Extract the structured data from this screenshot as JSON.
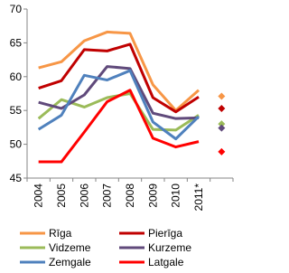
{
  "chart_data": {
    "type": "line",
    "categories": [
      "2004",
      "2005",
      "2006",
      "2007",
      "2008",
      "2009",
      "2010",
      "2011*",
      null
    ],
    "last_point_style": "diamond",
    "ylim": [
      45,
      70
    ],
    "yticks": [
      45,
      50,
      55,
      60,
      65,
      70
    ],
    "grid": false,
    "legend": "bottom",
    "series": [
      {
        "name": "Rīga",
        "color": "#F79646",
        "values": [
          61.3,
          62.2,
          65.3,
          66.6,
          66.4,
          58.8,
          55.0,
          58.0,
          57.1
        ]
      },
      {
        "name": "Pierīga",
        "color": "#C00000",
        "values": [
          58.3,
          59.4,
          64.0,
          63.8,
          64.8,
          56.9,
          54.8,
          57.0,
          55.3
        ]
      },
      {
        "name": "Vidzeme",
        "color": "#9BBB59",
        "values": [
          53.8,
          56.6,
          55.5,
          56.9,
          57.5,
          52.2,
          52.1,
          54.3,
          53.0
        ]
      },
      {
        "name": "Kurzeme",
        "color": "#604A7B",
        "values": [
          56.2,
          55.3,
          57.3,
          61.5,
          61.2,
          54.6,
          53.8,
          53.9,
          52.4
        ]
      },
      {
        "name": "Zemgale",
        "color": "#4F81BD",
        "values": [
          52.2,
          54.3,
          60.2,
          59.5,
          60.9,
          53.3,
          50.8,
          54.1,
          null
        ]
      },
      {
        "name": "Latgale",
        "color": "#FF0000",
        "values": [
          47.4,
          47.4,
          51.8,
          56.3,
          58.0,
          50.9,
          49.6,
          50.4,
          48.9
        ]
      }
    ]
  }
}
